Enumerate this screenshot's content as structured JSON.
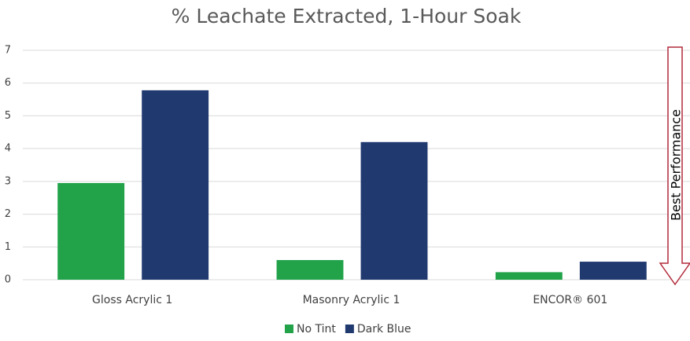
{
  "chart_data": {
    "type": "bar",
    "title": "% Leachate Extracted, 1-Hour Soak",
    "categories": [
      "Gloss Acrylic 1",
      "Masonry Acrylic 1",
      "ENCOR® 601"
    ],
    "series": [
      {
        "name": "No Tint",
        "color": "#22a34a",
        "values": [
          2.95,
          0.6,
          0.23
        ]
      },
      {
        "name": "Dark Blue",
        "color": "#203a70",
        "values": [
          5.78,
          4.2,
          0.55
        ]
      }
    ],
    "ylim": [
      0,
      7
    ],
    "yticks": [
      0,
      1,
      2,
      3,
      4,
      5,
      6,
      7
    ],
    "grid": true,
    "annotation": "Best Performance",
    "legend": "bottom"
  }
}
